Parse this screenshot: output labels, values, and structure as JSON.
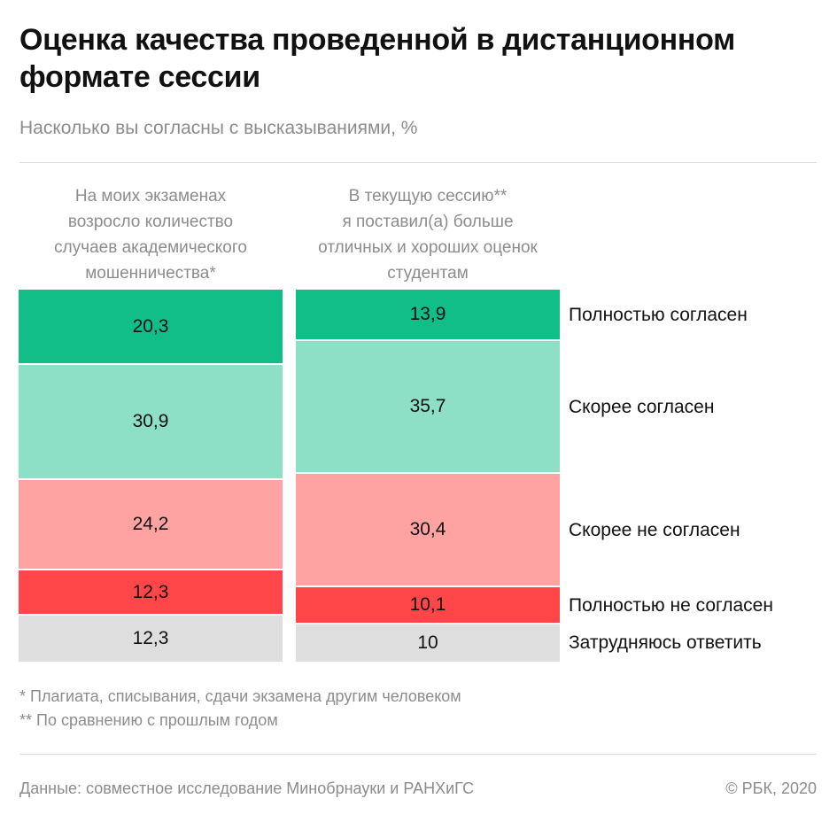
{
  "title": "Оценка качества проведенной в дистанционном формате сессии",
  "subtitle": "Насколько вы согласны с высказываниями, %",
  "chart_data": {
    "type": "bar",
    "stacked": true,
    "orientation": "vertical",
    "categories": [
      "На моих экзаменах возросло количество случаев академического мошенничества*",
      "В текущую сессию** я поставил(а) больше отличных и хороших оценок студентам"
    ],
    "category_lines": [
      [
        "На моих экзаменах",
        "возросло количество",
        "случаев академического",
        "мошенничества*"
      ],
      [
        "В текущую сессию**",
        "я поставил(а) больше",
        "отличных и хороших оценок",
        "студентам"
      ]
    ],
    "series": [
      {
        "name": "Полностью согласен",
        "color": "#12be87",
        "values": [
          20.3,
          13.9
        ]
      },
      {
        "name": "Скорее согласен",
        "color": "#8ddfc6",
        "values": [
          30.9,
          35.7
        ]
      },
      {
        "name": "Скорее не согласен",
        "color": "#ffa3a2",
        "values": [
          24.2,
          30.4
        ]
      },
      {
        "name": "Полностью не согласен",
        "color": "#ff4749",
        "values": [
          12.3,
          10.1
        ]
      },
      {
        "name": "Затрудняюсь ответить",
        "color": "#dedede",
        "values": [
          12.3,
          10
        ]
      }
    ],
    "value_labels": [
      [
        "20,3",
        "30,9",
        "24,2",
        "12,3",
        "12,3"
      ],
      [
        "13,9",
        "35,7",
        "30,4",
        "10,1",
        "10"
      ]
    ],
    "legend_position": "right",
    "grid": false
  },
  "notes": [
    "* Плагиата, списывания, сдачи экзамена другим человеком",
    "** По сравнению с прошлым годом"
  ],
  "footer": {
    "source": "Данные: совместное исследование Минобрнауки и РАНХиГС",
    "copyright": "© РБК, 2020"
  }
}
